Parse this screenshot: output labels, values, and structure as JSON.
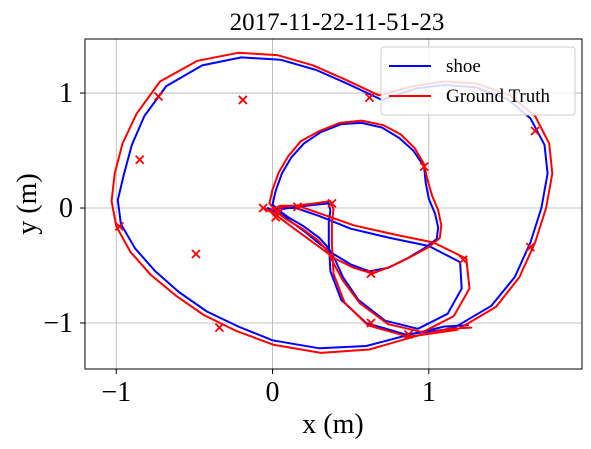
{
  "chart_data": {
    "type": "line",
    "title": "2017-11-22-11-51-23",
    "xlabel": "x (m)",
    "ylabel": "y (m)",
    "xlim": [
      -1.2,
      1.98
    ],
    "ylim": [
      -1.4,
      1.47
    ],
    "xticks": [
      -1,
      0,
      1
    ],
    "yticks": [
      -1,
      0,
      1
    ],
    "xtick_labels": [
      "−1",
      "0",
      "1"
    ],
    "ytick_labels": [
      "−1",
      "0",
      "1"
    ],
    "grid": true,
    "legend_position": "top-right",
    "series": [
      {
        "name": "shoe",
        "color": "#0000ff",
        "points": [
          [
            -0.03,
            0.0
          ],
          [
            0.05,
            -0.05
          ],
          [
            0.13,
            -0.13
          ],
          [
            0.22,
            -0.22
          ],
          [
            0.3,
            -0.31
          ],
          [
            0.39,
            -0.4
          ],
          [
            0.5,
            -0.49
          ],
          [
            0.62,
            -0.55
          ],
          [
            0.74,
            -0.52
          ],
          [
            0.86,
            -0.44
          ],
          [
            0.97,
            -0.35
          ],
          [
            1.05,
            -0.27
          ],
          [
            1.06,
            -0.17
          ],
          [
            1.04,
            -0.05
          ],
          [
            1.0,
            0.08
          ],
          [
            0.98,
            0.22
          ],
          [
            0.97,
            0.36
          ],
          [
            0.9,
            0.5
          ],
          [
            0.81,
            0.61
          ],
          [
            0.7,
            0.7
          ],
          [
            0.57,
            0.74
          ],
          [
            0.44,
            0.73
          ],
          [
            0.31,
            0.66
          ],
          [
            0.2,
            0.56
          ],
          [
            0.12,
            0.44
          ],
          [
            0.06,
            0.3
          ],
          [
            0.02,
            0.15
          ],
          [
            0.0,
            0.03
          ],
          [
            0.05,
            -0.03
          ],
          [
            0.1,
            -0.08
          ],
          [
            0.2,
            -0.16
          ],
          [
            0.3,
            -0.26
          ],
          [
            0.36,
            -0.35
          ],
          [
            0.4,
            -0.45
          ],
          [
            0.45,
            -0.6
          ],
          [
            0.55,
            -0.8
          ],
          [
            0.72,
            -0.98
          ],
          [
            0.93,
            -1.05
          ],
          [
            1.12,
            -0.92
          ],
          [
            1.21,
            -0.7
          ],
          [
            1.2,
            -0.47
          ],
          [
            1.0,
            -0.33
          ],
          [
            0.75,
            -0.26
          ],
          [
            0.5,
            -0.18
          ],
          [
            0.3,
            -0.07
          ],
          [
            0.15,
            0.0
          ],
          [
            0.04,
            0.0
          ],
          [
            0.0,
            -0.03
          ],
          [
            0.02,
            -0.08
          ],
          [
            0.06,
            -0.01
          ],
          [
            0.15,
            0.01
          ],
          [
            0.28,
            0.03
          ],
          [
            0.36,
            0.04
          ],
          [
            0.37,
            -0.02
          ],
          [
            0.36,
            -0.12
          ],
          [
            0.36,
            -0.3
          ],
          [
            0.37,
            -0.55
          ],
          [
            0.44,
            -0.8
          ],
          [
            0.6,
            -1.0
          ],
          [
            0.85,
            -1.1
          ],
          [
            1.15,
            -1.05
          ],
          [
            1.4,
            -0.85
          ],
          [
            1.55,
            -0.6
          ],
          [
            1.65,
            -0.3
          ],
          [
            1.72,
            0.0
          ],
          [
            1.76,
            0.3
          ],
          [
            1.74,
            0.55
          ],
          [
            1.65,
            0.78
          ],
          [
            1.5,
            0.95
          ],
          [
            1.3,
            1.05
          ],
          [
            1.1,
            1.07
          ],
          [
            0.92,
            1.04
          ],
          [
            0.7,
            0.94
          ],
          [
            0.48,
            1.08
          ],
          [
            0.28,
            1.2
          ],
          [
            0.05,
            1.29
          ],
          [
            -0.2,
            1.31
          ],
          [
            -0.45,
            1.24
          ],
          [
            -0.68,
            1.06
          ],
          [
            -0.82,
            0.8
          ],
          [
            -0.9,
            0.55
          ],
          [
            -0.95,
            0.3
          ],
          [
            -0.99,
            0.07
          ],
          [
            -0.97,
            -0.14
          ],
          [
            -0.88,
            -0.35
          ],
          [
            -0.75,
            -0.55
          ],
          [
            -0.6,
            -0.73
          ],
          [
            -0.42,
            -0.9
          ],
          [
            -0.22,
            -1.03
          ],
          [
            0.0,
            -1.15
          ],
          [
            0.3,
            -1.22
          ],
          [
            0.6,
            -1.2
          ],
          [
            0.88,
            -1.1
          ],
          [
            1.1,
            -1.03
          ],
          [
            1.25,
            -1.02
          ]
        ]
      },
      {
        "name": "Ground Truth",
        "color": "#ff0000",
        "points": [
          [
            -0.05,
            0.0
          ],
          [
            0.03,
            -0.07
          ],
          [
            0.12,
            -0.16
          ],
          [
            0.21,
            -0.25
          ],
          [
            0.3,
            -0.34
          ],
          [
            0.4,
            -0.44
          ],
          [
            0.52,
            -0.52
          ],
          [
            0.64,
            -0.57
          ],
          [
            0.77,
            -0.5
          ],
          [
            0.89,
            -0.42
          ],
          [
            1.0,
            -0.34
          ],
          [
            1.07,
            -0.26
          ],
          [
            1.08,
            -0.15
          ],
          [
            1.06,
            -0.02
          ],
          [
            1.02,
            0.11
          ],
          [
            0.99,
            0.25
          ],
          [
            0.97,
            0.38
          ],
          [
            0.91,
            0.52
          ],
          [
            0.82,
            0.64
          ],
          [
            0.71,
            0.72
          ],
          [
            0.57,
            0.76
          ],
          [
            0.43,
            0.74
          ],
          [
            0.3,
            0.67
          ],
          [
            0.18,
            0.58
          ],
          [
            0.1,
            0.45
          ],
          [
            0.04,
            0.31
          ],
          [
            0.0,
            0.16
          ],
          [
            -0.02,
            0.04
          ],
          [
            0.03,
            -0.04
          ],
          [
            0.09,
            -0.1
          ],
          [
            0.19,
            -0.18
          ],
          [
            0.29,
            -0.28
          ],
          [
            0.35,
            -0.37
          ],
          [
            0.39,
            -0.48
          ],
          [
            0.45,
            -0.63
          ],
          [
            0.56,
            -0.83
          ],
          [
            0.74,
            -1.01
          ],
          [
            0.96,
            -1.08
          ],
          [
            1.16,
            -0.94
          ],
          [
            1.26,
            -0.7
          ],
          [
            1.24,
            -0.44
          ],
          [
            1.03,
            -0.3
          ],
          [
            0.78,
            -0.23
          ],
          [
            0.52,
            -0.15
          ],
          [
            0.31,
            -0.05
          ],
          [
            0.16,
            0.02
          ],
          [
            0.05,
            0.02
          ],
          [
            -0.01,
            -0.02
          ],
          [
            0.01,
            -0.06
          ],
          [
            0.05,
            0.01
          ],
          [
            0.14,
            0.02
          ],
          [
            0.27,
            0.04
          ],
          [
            0.37,
            0.06
          ],
          [
            0.39,
            -0.01
          ],
          [
            0.38,
            -0.13
          ],
          [
            0.38,
            -0.31
          ],
          [
            0.39,
            -0.57
          ],
          [
            0.46,
            -0.82
          ],
          [
            0.61,
            -1.02
          ],
          [
            0.87,
            -1.12
          ],
          [
            1.18,
            -1.06
          ],
          [
            1.43,
            -0.86
          ],
          [
            1.58,
            -0.6
          ],
          [
            1.68,
            -0.3
          ],
          [
            1.75,
            0.0
          ],
          [
            1.79,
            0.3
          ],
          [
            1.77,
            0.56
          ],
          [
            1.68,
            0.8
          ],
          [
            1.52,
            0.98
          ],
          [
            1.31,
            1.08
          ],
          [
            1.1,
            1.1
          ],
          [
            0.9,
            1.06
          ],
          [
            0.68,
            0.98
          ],
          [
            0.46,
            1.12
          ],
          [
            0.26,
            1.24
          ],
          [
            0.03,
            1.33
          ],
          [
            -0.22,
            1.35
          ],
          [
            -0.48,
            1.28
          ],
          [
            -0.72,
            1.1
          ],
          [
            -0.87,
            0.82
          ],
          [
            -0.96,
            0.56
          ],
          [
            -1.01,
            0.3
          ],
          [
            -1.03,
            0.06
          ],
          [
            -1.0,
            -0.16
          ],
          [
            -0.91,
            -0.38
          ],
          [
            -0.78,
            -0.58
          ],
          [
            -0.62,
            -0.76
          ],
          [
            -0.44,
            -0.93
          ],
          [
            -0.23,
            -1.07
          ],
          [
            0.01,
            -1.19
          ],
          [
            0.31,
            -1.26
          ],
          [
            0.62,
            -1.23
          ],
          [
            0.9,
            -1.12
          ],
          [
            1.12,
            -1.05
          ],
          [
            1.27,
            -1.04
          ]
        ]
      }
    ],
    "markers": {
      "color": "#ff0000",
      "shape": "x",
      "points": [
        [
          -0.73,
          0.97
        ],
        [
          -0.19,
          0.94
        ],
        [
          -0.85,
          0.42
        ],
        [
          -0.98,
          -0.16
        ],
        [
          -0.49,
          -0.4
        ],
        [
          -0.34,
          -1.04
        ],
        [
          0.62,
          0.96
        ],
        [
          0.97,
          0.36
        ],
        [
          1.68,
          0.67
        ],
        [
          1.65,
          -0.34
        ],
        [
          1.22,
          -0.45
        ],
        [
          0.63,
          -0.57
        ],
        [
          0.63,
          -1.0
        ],
        [
          0.87,
          -1.1
        ],
        [
          -0.06,
          0.0
        ],
        [
          0.04,
          -0.04
        ],
        [
          0.16,
          0.01
        ],
        [
          0.38,
          0.04
        ],
        [
          0.02,
          -0.08
        ]
      ]
    }
  }
}
